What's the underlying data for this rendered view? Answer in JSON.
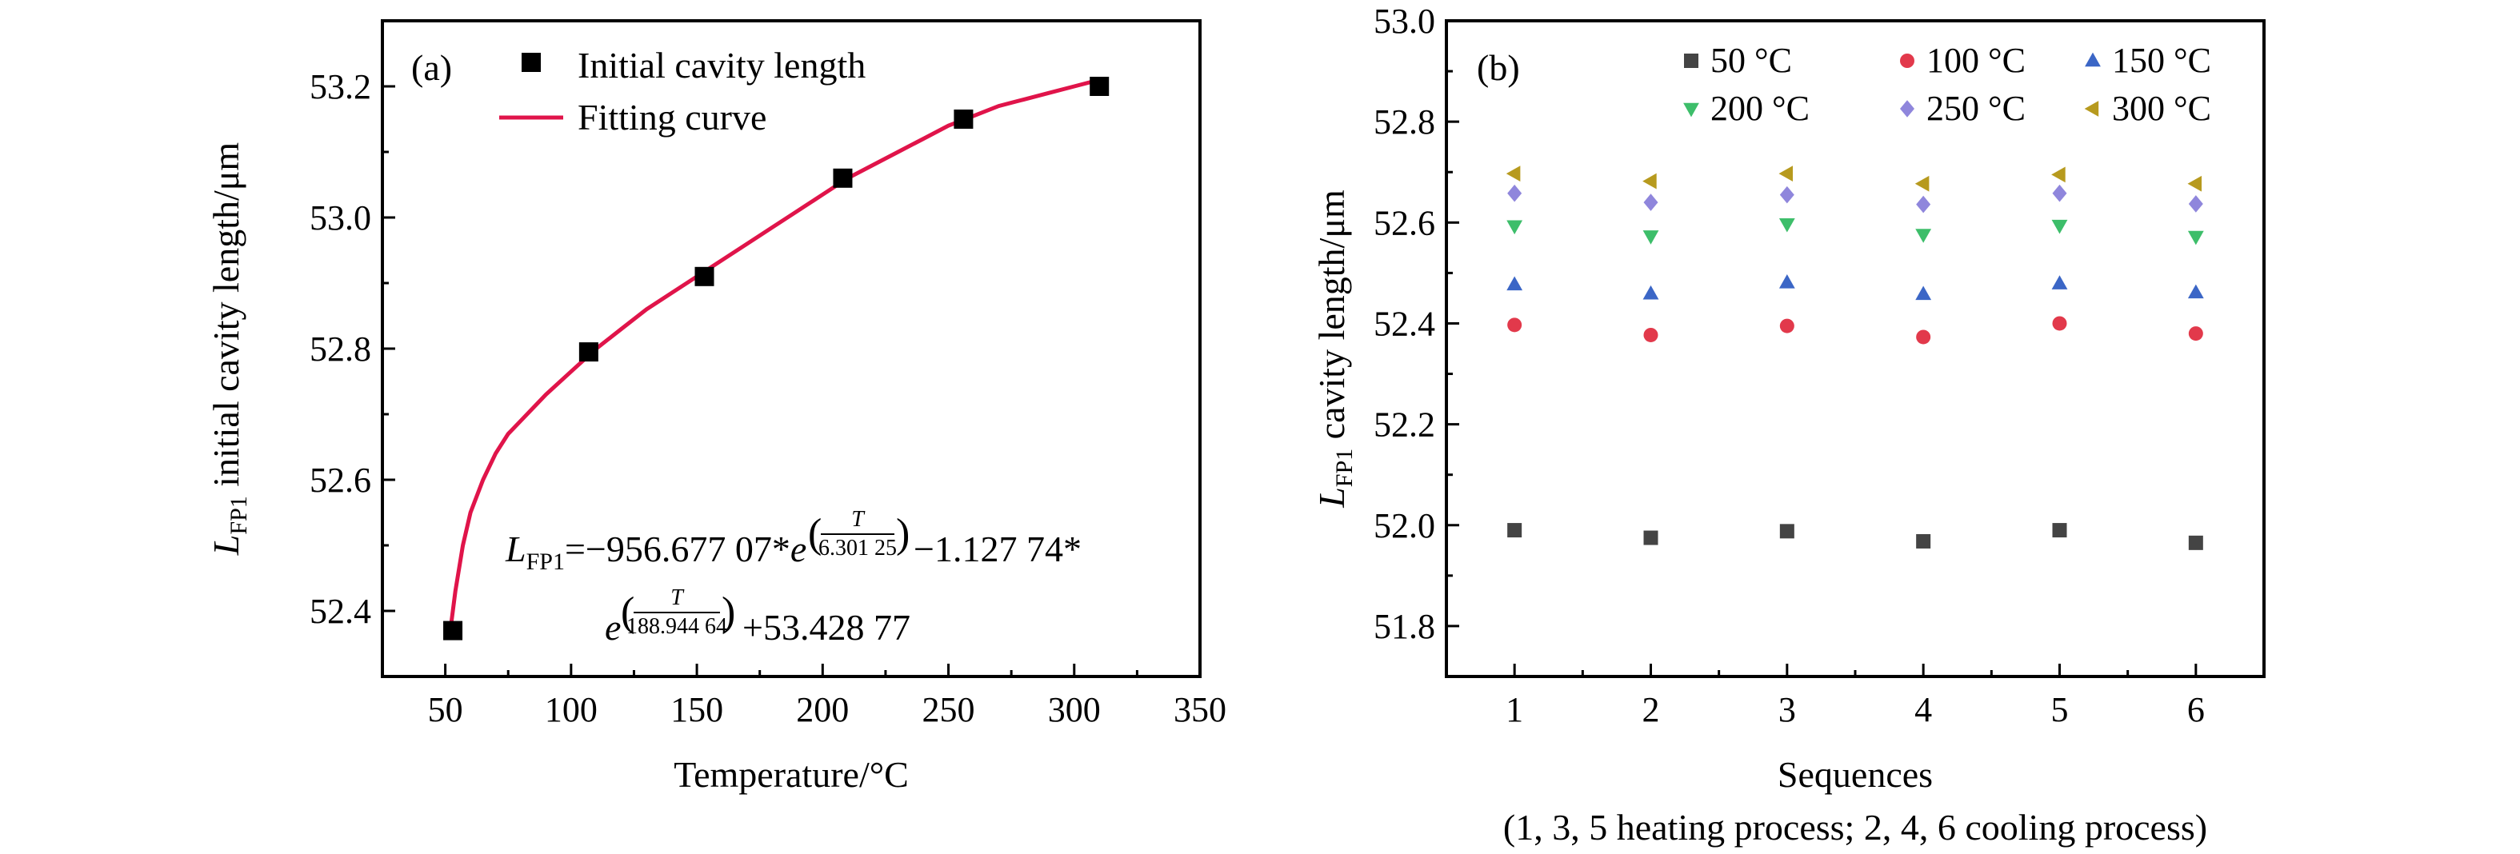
{
  "colors": {
    "axis": "#000000",
    "fit_curve": "#e0144a",
    "s50": "#444444",
    "s100": "#e2394b",
    "s150": "#3b66c6",
    "s200": "#3dbe6a",
    "s250": "#8f86dc",
    "s300": "#b79a1e"
  },
  "chart_data": [
    {
      "panel": "(a)",
      "type": "scatter",
      "xlabel": "Temperature/°C",
      "ylabel_sym": "L",
      "ylabel_sub": "FP1",
      "ylabel_rest": " initial cavity length/μm",
      "xlim": [
        25,
        350
      ],
      "ylim": [
        52.3,
        53.3
      ],
      "xticks": [
        "50",
        "100",
        "150",
        "200",
        "250",
        "300",
        "350"
      ],
      "yticks": [
        "52.4",
        "52.6",
        "52.8",
        "53.0",
        "53.2"
      ],
      "legend": {
        "position": "top-left",
        "entries": [
          "Initial cavity length",
          "Fitting curve"
        ]
      },
      "series": [
        {
          "name": "Initial cavity length",
          "marker": "square",
          "x": [
            53,
            107,
            153,
            208,
            256,
            310
          ],
          "y": [
            52.37,
            52.795,
            52.91,
            53.06,
            53.15,
            53.2
          ]
        },
        {
          "name": "Fitting curve",
          "type": "line",
          "x": [
            52,
            54,
            57,
            60,
            65,
            70,
            75,
            80,
            90,
            100,
            110,
            120,
            130,
            140,
            150,
            160,
            170,
            180,
            190,
            200,
            210,
            220,
            230,
            240,
            250,
            260,
            270,
            280,
            290,
            300,
            310
          ],
          "y": [
            52.37,
            52.43,
            52.5,
            52.55,
            52.6,
            52.64,
            52.67,
            52.69,
            52.73,
            52.765,
            52.8,
            52.83,
            52.86,
            52.885,
            52.91,
            52.935,
            52.96,
            52.985,
            53.01,
            53.035,
            53.06,
            53.08,
            53.1,
            53.12,
            53.14,
            53.155,
            53.17,
            53.18,
            53.19,
            53.2,
            53.21
          ]
        }
      ],
      "equation": {
        "line1_pre": "L",
        "line1_sub": "FP1",
        "line1_mid": "=−956.677 07*",
        "e": "e",
        "exp1_num": "T",
        "exp1_den": "6.301 25",
        "line1_post": "−1.127 74*",
        "exp2_num": "T",
        "exp2_den": "188.944 64",
        "line2_post": "+53.428 77"
      }
    },
    {
      "panel": "(b)",
      "type": "scatter",
      "xlabel": "Sequences",
      "xlabel2": "(1, 3, 5 heating process; 2, 4, 6 cooling process)",
      "ylabel_sym": "L",
      "ylabel_sub": "FP1",
      "ylabel_rest": " cavity length/μm",
      "xlim": [
        0.5,
        6.5
      ],
      "ylim": [
        51.7,
        53.0
      ],
      "categories": [
        "1",
        "2",
        "3",
        "4",
        "5",
        "6"
      ],
      "yticks": [
        "51.8",
        "52.0",
        "52.2",
        "52.4",
        "52.6",
        "52.8",
        "53.0"
      ],
      "legend": {
        "position": "top-right"
      },
      "series": [
        {
          "name": "50 °C",
          "marker": "square",
          "values": [
            51.99,
            51.975,
            51.988,
            51.968,
            51.99,
            51.965
          ]
        },
        {
          "name": "100 °C",
          "marker": "circle",
          "values": [
            52.397,
            52.377,
            52.395,
            52.373,
            52.4,
            52.38
          ]
        },
        {
          "name": "150 °C",
          "marker": "triangle-up",
          "values": [
            52.477,
            52.459,
            52.481,
            52.458,
            52.479,
            52.461
          ]
        },
        {
          "name": "200 °C",
          "marker": "triangle-down",
          "values": [
            52.593,
            52.573,
            52.597,
            52.576,
            52.594,
            52.572
          ]
        },
        {
          "name": "250 °C",
          "marker": "diamond",
          "values": [
            52.658,
            52.64,
            52.655,
            52.636,
            52.658,
            52.637
          ]
        },
        {
          "name": "300 °C",
          "marker": "triangle-left",
          "values": [
            52.697,
            52.682,
            52.697,
            52.677,
            52.695,
            52.677
          ]
        }
      ]
    }
  ]
}
